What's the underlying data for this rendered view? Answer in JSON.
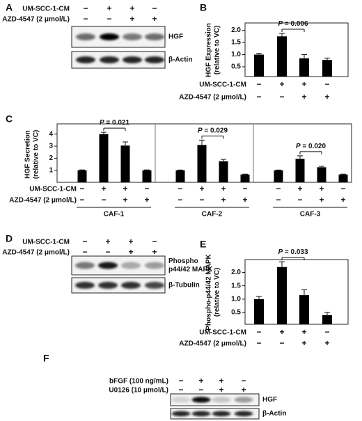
{
  "chart_data": [
    {
      "panel": "B",
      "type": "bar",
      "y_label": [
        "HGF Expression",
        "(relative to VC)"
      ],
      "values": [
        1.0,
        1.75,
        0.85,
        0.78
      ],
      "errors": [
        0.05,
        0.12,
        0.15,
        0.08
      ],
      "color": "#000000",
      "ylim": [
        0.1,
        2.3
      ],
      "yticks": [
        {
          "value": 0.5,
          "label": "0.5"
        },
        {
          "value": 1.0,
          "label": "1.0"
        },
        {
          "value": 1.5,
          "label": "1.5"
        },
        {
          "value": 2.0,
          "label": "2.0"
        }
      ],
      "annotation": {
        "symbol": "P",
        "text": " = 0.006"
      },
      "conditions": [
        {
          "name": "UM-SCC-1-CM",
          "signs": [
            "−",
            "+",
            "+",
            "−"
          ]
        },
        {
          "name": "AZD-4547 (2 μmol/L)",
          "signs": [
            "−",
            "−",
            "+",
            "+"
          ]
        }
      ]
    },
    {
      "panel": "C",
      "type": "grouped-bar",
      "y_label": [
        "HGF Secretion",
        "(relative to VC)"
      ],
      "color": "#000000",
      "ylim": [
        0,
        4.85
      ],
      "yticks": [
        1,
        2,
        3,
        4
      ],
      "groups": [
        {
          "name": "CAF-1",
          "values": [
            1.0,
            4.0,
            3.05,
            1.0
          ],
          "errors": [
            0.03,
            0.15,
            0.3,
            0.03
          ],
          "annotation": {
            "symbol": "P",
            "text": " = 0.021"
          }
        },
        {
          "name": "CAF-2",
          "values": [
            1.0,
            3.1,
            1.75,
            0.65
          ],
          "errors": [
            0.02,
            0.4,
            0.15,
            0.03
          ],
          "annotation": {
            "symbol": "P",
            "text": " = 0.029"
          }
        },
        {
          "name": "CAF-3",
          "values": [
            1.0,
            1.95,
            1.25,
            0.65
          ],
          "errors": [
            0.02,
            0.25,
            0.08,
            0.03
          ],
          "annotation": {
            "symbol": "P",
            "text": " = 0.020"
          }
        }
      ],
      "conditions": [
        {
          "name": "UM-SCC-1-CM",
          "signs": [
            "−",
            "+",
            "+",
            "−"
          ]
        },
        {
          "name": "AZD-4547 (2 μmol/L)",
          "signs": [
            "−",
            "−",
            "+",
            "+"
          ]
        }
      ]
    },
    {
      "panel": "E",
      "type": "bar",
      "y_label": [
        "Phospho-p44/42 MAPK",
        "(relative to VC)"
      ],
      "values": [
        1.0,
        2.2,
        1.15,
        0.4
      ],
      "errors": [
        0.1,
        0.2,
        0.2,
        0.1
      ],
      "color": "#000000",
      "ylim": [
        0.06,
        2.48
      ],
      "yticks": [
        {
          "value": 0.5,
          "label": "0.5"
        },
        {
          "value": 1.0,
          "label": "1.0"
        },
        {
          "value": 1.5,
          "label": "1.5"
        },
        {
          "value": 2.0,
          "label": "2.0"
        }
      ],
      "annotation": {
        "symbol": "P",
        "text": " = 0.033"
      },
      "conditions": [
        {
          "name": "UM-SCC-1-CM",
          "signs": [
            "−",
            "+",
            "+",
            "−"
          ]
        },
        {
          "name": "AZD-4547 (2 μmol/L)",
          "signs": [
            "−",
            "−",
            "+",
            "+"
          ]
        }
      ]
    }
  ],
  "blots": [
    {
      "panel": "A",
      "conditions": [
        {
          "name": "UM-SCC-1-CM",
          "signs": [
            "−",
            "+",
            "+",
            "−"
          ]
        },
        {
          "name": "AZD-4547 (2 μmol/L)",
          "signs": [
            "−",
            "−",
            "+",
            "+"
          ]
        }
      ],
      "bands": [
        [
          "HGF"
        ],
        [
          "β-Actin"
        ]
      ]
    },
    {
      "panel": "D",
      "conditions": [
        {
          "name": "UM-SCC-1-CM",
          "signs": [
            "−",
            "+",
            "+",
            "−"
          ]
        },
        {
          "name": "AZD-4547 (2 μmol/L)",
          "signs": [
            "−",
            "−",
            "+",
            "+"
          ]
        }
      ],
      "bands": [
        [
          "Phospho",
          "p44/42 MAPK"
        ],
        [
          "β-Tubulin"
        ]
      ]
    },
    {
      "panel": "F",
      "conditions": [
        {
          "name": "bFGF (100 ng/mL)",
          "signs": [
            "−",
            "+",
            "+",
            "−"
          ]
        },
        {
          "name": "U0126 (10 μmol/L)",
          "signs": [
            "−",
            "−",
            "+",
            "+"
          ]
        }
      ],
      "bands": [
        [
          "HGF"
        ],
        [
          "β-Actin"
        ]
      ]
    }
  ]
}
